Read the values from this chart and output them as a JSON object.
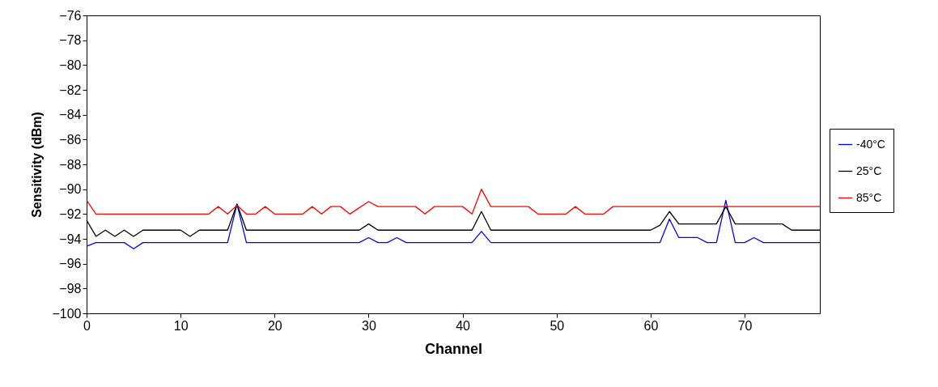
{
  "chart_data": {
    "type": "line",
    "xlabel": "Channel",
    "ylabel": "Sensitivity (dBm)",
    "xlim": [
      0,
      78
    ],
    "xticks": [
      0,
      10,
      20,
      30,
      40,
      50,
      60,
      70
    ],
    "ylim": [
      -100,
      -76
    ],
    "yticks": [
      -100,
      -98,
      -96,
      -94,
      -92,
      -90,
      -88,
      -86,
      -84,
      -82,
      -80,
      -78,
      -76
    ],
    "grid": false,
    "legend": "right",
    "marker": "none",
    "line_style": "solid",
    "x": [
      0,
      1,
      2,
      3,
      4,
      5,
      6,
      7,
      8,
      9,
      10,
      11,
      12,
      13,
      14,
      15,
      16,
      17,
      18,
      19,
      20,
      21,
      22,
      23,
      24,
      25,
      26,
      27,
      28,
      29,
      30,
      31,
      32,
      33,
      34,
      35,
      36,
      37,
      38,
      39,
      40,
      41,
      42,
      43,
      44,
      45,
      46,
      47,
      48,
      49,
      50,
      51,
      52,
      53,
      54,
      55,
      56,
      57,
      58,
      59,
      60,
      61,
      62,
      63,
      64,
      65,
      66,
      67,
      68,
      69,
      70,
      71,
      72,
      73,
      74,
      75,
      76,
      77,
      78
    ],
    "series": [
      {
        "name": "-40°C",
        "color": "#0000ff",
        "values": [
          -94.6,
          -94.3,
          -94.3,
          -94.3,
          -94.3,
          -94.8,
          -94.3,
          -94.3,
          -94.3,
          -94.3,
          -94.3,
          -94.3,
          -94.3,
          -94.3,
          -94.3,
          -94.3,
          -91.2,
          -94.3,
          -94.3,
          -94.3,
          -94.3,
          -94.3,
          -94.3,
          -94.3,
          -94.3,
          -94.3,
          -94.3,
          -94.3,
          -94.3,
          -94.3,
          -93.9,
          -94.3,
          -94.3,
          -93.9,
          -94.3,
          -94.3,
          -94.3,
          -94.3,
          -94.3,
          -94.3,
          -94.3,
          -94.3,
          -93.4,
          -94.3,
          -94.3,
          -94.3,
          -94.3,
          -94.3,
          -94.3,
          -94.3,
          -94.3,
          -94.3,
          -94.3,
          -94.3,
          -94.3,
          -94.3,
          -94.3,
          -94.3,
          -94.3,
          -94.3,
          -94.3,
          -94.3,
          -92.4,
          -93.9,
          -93.9,
          -93.9,
          -94.3,
          -94.3,
          -90.9,
          -94.3,
          -94.3,
          -93.9,
          -94.3,
          -94.3,
          -94.3,
          -94.3,
          -94.3,
          -94.3,
          -94.3
        ]
      },
      {
        "name": "25°C",
        "color": "#000000",
        "values": [
          -92.5,
          -93.8,
          -93.3,
          -93.8,
          -93.3,
          -93.8,
          -93.3,
          -93.3,
          -93.3,
          -93.3,
          -93.3,
          -93.8,
          -93.3,
          -93.3,
          -93.3,
          -93.3,
          -91.2,
          -93.3,
          -93.3,
          -93.3,
          -93.3,
          -93.3,
          -93.3,
          -93.3,
          -93.3,
          -93.3,
          -93.3,
          -93.3,
          -93.3,
          -93.3,
          -92.8,
          -93.3,
          -93.3,
          -93.3,
          -93.3,
          -93.3,
          -93.3,
          -93.3,
          -93.3,
          -93.3,
          -93.3,
          -93.3,
          -91.8,
          -93.3,
          -93.3,
          -93.3,
          -93.3,
          -93.3,
          -93.3,
          -93.3,
          -93.3,
          -93.3,
          -93.3,
          -93.3,
          -93.3,
          -93.3,
          -93.3,
          -93.3,
          -93.3,
          -93.3,
          -93.3,
          -92.9,
          -91.8,
          -92.8,
          -92.8,
          -92.8,
          -92.8,
          -92.8,
          -91.4,
          -92.8,
          -92.8,
          -92.8,
          -92.8,
          -92.8,
          -92.8,
          -93.3,
          -93.3,
          -93.3,
          -93.3
        ]
      },
      {
        "name": "85°C",
        "color": "#ff0000",
        "values": [
          -90.9,
          -92,
          -92,
          -92,
          -92,
          -92,
          -92,
          -92,
          -92,
          -92,
          -92,
          -92,
          -92,
          -92,
          -91.4,
          -92,
          -91.3,
          -92,
          -92,
          -91.4,
          -92,
          -92,
          -92,
          -92,
          -91.4,
          -92,
          -91.4,
          -91.4,
          -92,
          -91.5,
          -91,
          -91.4,
          -91.4,
          -91.4,
          -91.4,
          -91.4,
          -92,
          -91.4,
          -91.4,
          -91.4,
          -91.4,
          -92,
          -90,
          -91.4,
          -91.4,
          -91.4,
          -91.4,
          -91.4,
          -92,
          -92,
          -92,
          -92,
          -91.4,
          -92,
          -92,
          -92,
          -91.4,
          -91.4,
          -91.4,
          -91.4,
          -91.4,
          -91.4,
          -91.4,
          -91.4,
          -91.4,
          -91.4,
          -91.4,
          -91.4,
          -91.4,
          -91.4,
          -91.4,
          -91.4,
          -91.4,
          -91.4,
          -91.4,
          -91.4,
          -91.4,
          -91.4,
          -91.4
        ]
      }
    ]
  }
}
